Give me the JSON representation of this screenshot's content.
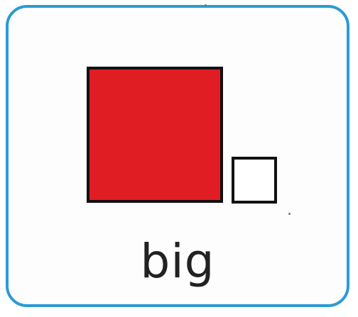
{
  "card": {
    "border_color": "#2a9bd4",
    "big_square_color": "#e11d24",
    "small_square_color": "#ffffff",
    "outline_color": "#111111",
    "label": "big"
  }
}
